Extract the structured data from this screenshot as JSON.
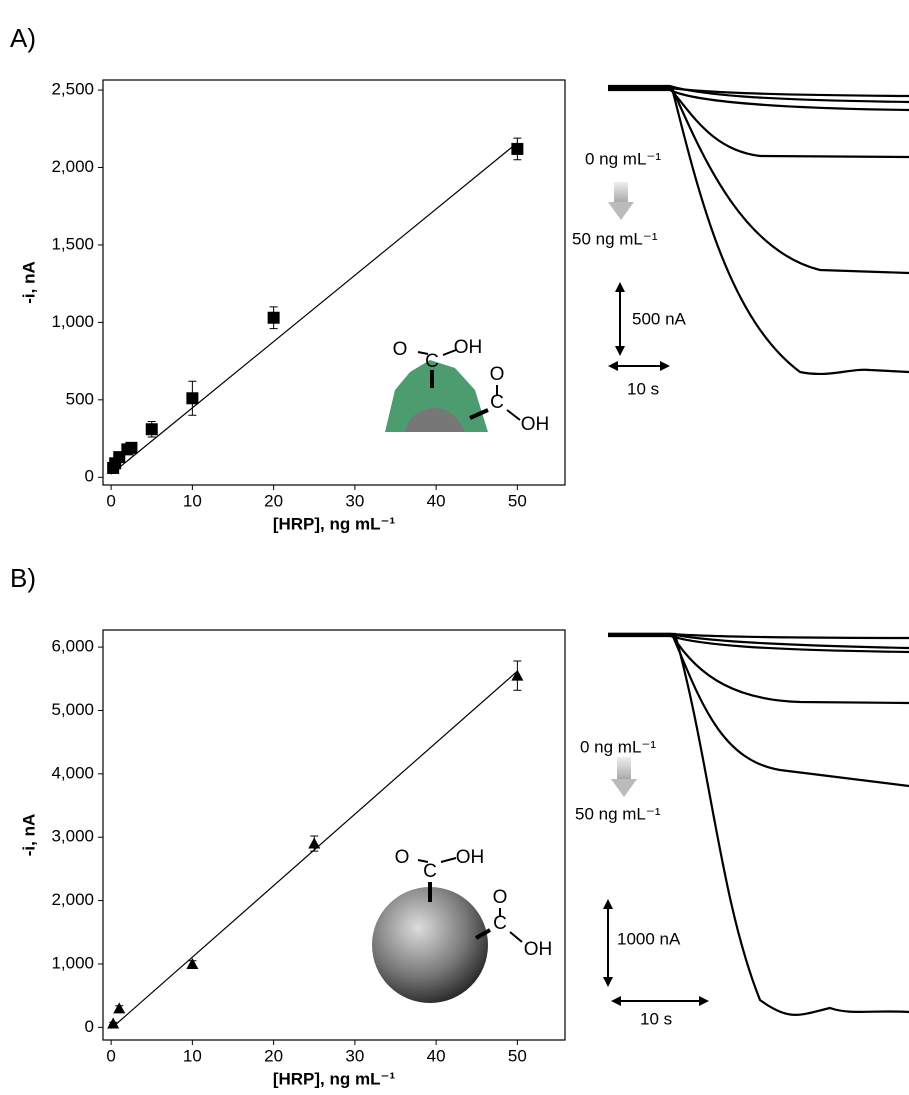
{
  "chart_data": [
    {
      "type": "scatter",
      "panel_label": "A)",
      "ylabel": "-i, nA",
      "xlabel": "[HRP], ng mL⁻¹",
      "marker": "square",
      "color": "#000000",
      "x": [
        0.25,
        0.5,
        1,
        2,
        2.5,
        5,
        10,
        20,
        50
      ],
      "values": [
        60,
        90,
        130,
        180,
        190,
        310,
        510,
        1030,
        2120
      ],
      "errors": [
        15,
        20,
        20,
        25,
        25,
        50,
        110,
        70,
        70
      ],
      "fit": {
        "x": [
          0,
          50
        ],
        "values": [
          20,
          2160
        ]
      },
      "xlim": [
        -1,
        55
      ],
      "ylim": [
        -50,
        2565
      ],
      "xticks": [
        0,
        10,
        20,
        30,
        40,
        50
      ],
      "yticks": [
        0,
        500,
        {
          "value": 1000,
          "label": "1,000"
        },
        {
          "value": 1500,
          "label": "1,500"
        },
        {
          "value": 2000,
          "label": "2,000"
        },
        {
          "value": 2500,
          "label": "2,500"
        }
      ],
      "molecule_labels": [
        "O",
        "C",
        "OH",
        "O",
        "C",
        "OH"
      ],
      "trace_labels": [
        "0 ng mL⁻¹",
        "50 ng mL⁻¹",
        "500 nA",
        "10 s"
      ]
    },
    {
      "type": "scatter",
      "panel_label": "B)",
      "ylabel": "-i, nA",
      "xlabel": "[HRP], ng mL⁻¹",
      "marker": "triangle",
      "color": "#000000",
      "x": [
        0.25,
        1,
        10,
        25,
        50
      ],
      "values": [
        60,
        300,
        1000,
        2900,
        5550
      ],
      "errors": [
        20,
        40,
        50,
        120,
        230
      ],
      "fit": {
        "x": [
          0,
          50
        ],
        "values": [
          -20,
          5620
        ]
      },
      "xlim": [
        -1,
        55
      ],
      "ylim": [
        -200,
        6270
      ],
      "xticks": [
        0,
        10,
        20,
        30,
        40,
        50
      ],
      "yticks": [
        0,
        {
          "value": 1000,
          "label": "1,000"
        },
        {
          "value": 2000,
          "label": "2,000"
        },
        {
          "value": 3000,
          "label": "3,000"
        },
        {
          "value": 4000,
          "label": "4,000"
        },
        {
          "value": 5000,
          "label": "5,000"
        },
        {
          "value": 6000,
          "label": "6,000"
        }
      ],
      "molecule_labels": [
        "O",
        "C",
        "OH",
        "O",
        "C",
        "OH"
      ],
      "trace_labels": [
        "0 ng mL⁻¹",
        "50 ng mL⁻¹",
        "1000 nA",
        "10 s"
      ]
    }
  ]
}
